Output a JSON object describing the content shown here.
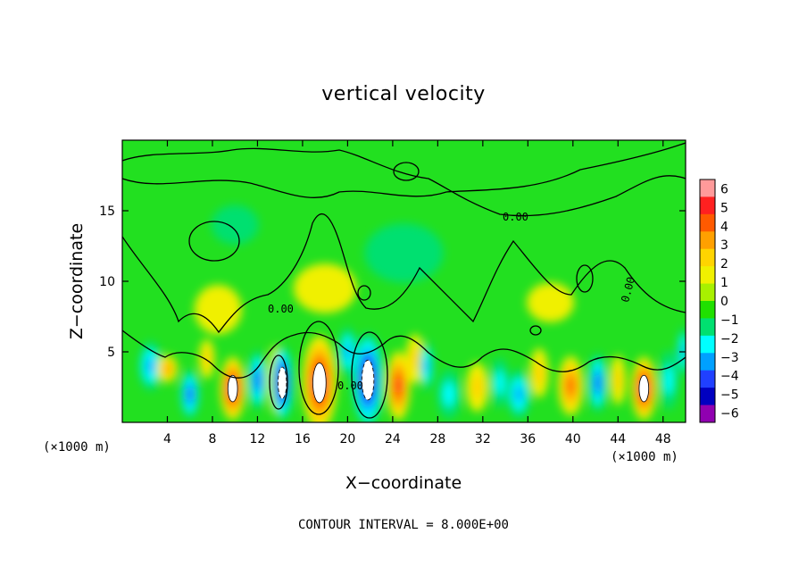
{
  "chart_data": {
    "type": "heatmap",
    "title": "vertical velocity",
    "xlabel": "X−coordinate",
    "ylabel": "Z−coordinate",
    "x_unit_left": "(×1000 m)",
    "x_unit_right": "(×1000 m)",
    "xlim": [
      0,
      50
    ],
    "ylim": [
      0,
      20
    ],
    "x_ticks": [
      4,
      8,
      12,
      16,
      20,
      24,
      28,
      32,
      36,
      40,
      44,
      48
    ],
    "y_ticks": [
      5,
      10,
      15
    ],
    "colorbar": {
      "levels": [
        -6,
        -5,
        -4,
        -3,
        -2,
        -1,
        0,
        1,
        2,
        3,
        4,
        5,
        6
      ],
      "labels": [
        "6",
        "5",
        "4",
        "3",
        "2",
        "1",
        "0",
        "−1",
        "−2",
        "−3",
        "−4",
        "−5",
        "−6"
      ],
      "colors": [
        "#ff9a9a",
        "#ff2020",
        "#ff5a00",
        "#ffa000",
        "#ffd400",
        "#f0f000",
        "#a8f000",
        "#20e000",
        "#00e070",
        "#00ffff",
        "#00a0ff",
        "#2040ff",
        "#0000c0",
        "#9000b0"
      ]
    },
    "contour_labels": [
      "0.00",
      "0.00",
      "0.00",
      "0.00"
    ],
    "cells": [
      {
        "x": 2.5,
        "z": 4.0,
        "w": 1.5,
        "h": 2.5,
        "v": -3
      },
      {
        "x": 4.0,
        "z": 3.8,
        "w": 1.3,
        "h": 1.4,
        "v": 3
      },
      {
        "x": 6.0,
        "z": 2.0,
        "w": 1.2,
        "h": 2.5,
        "v": -4
      },
      {
        "x": 7.5,
        "z": 4.5,
        "w": 1.0,
        "h": 2.0,
        "v": 1.5
      },
      {
        "x": 9.8,
        "z": 2.4,
        "w": 1.6,
        "h": 3.2,
        "v": 6
      },
      {
        "x": 12.0,
        "z": 3.0,
        "w": 1.2,
        "h": 3.0,
        "v": -4
      },
      {
        "x": 13.6,
        "z": 3.0,
        "w": 1.0,
        "h": 3.5,
        "v": 1.5
      },
      {
        "x": 14.2,
        "z": 2.8,
        "w": 1.4,
        "h": 3.8,
        "v": -6
      },
      {
        "x": 17.5,
        "z": 2.8,
        "w": 2.2,
        "h": 4.8,
        "v": 6
      },
      {
        "x": 20.0,
        "z": 5.0,
        "w": 1.2,
        "h": 2.5,
        "v": -3
      },
      {
        "x": 21.8,
        "z": 3.0,
        "w": 2.0,
        "h": 4.8,
        "v": -6
      },
      {
        "x": 24.5,
        "z": 2.6,
        "w": 1.5,
        "h": 3.5,
        "v": 5
      },
      {
        "x": 26.0,
        "z": 4.5,
        "w": 1.2,
        "h": 2.5,
        "v": 2
      },
      {
        "x": 27.0,
        "z": 4.0,
        "w": 0.9,
        "h": 2.5,
        "v": -3
      },
      {
        "x": 29.0,
        "z": 2.0,
        "w": 1.5,
        "h": 2.5,
        "v": -2
      },
      {
        "x": 31.5,
        "z": 2.5,
        "w": 1.4,
        "h": 2.5,
        "v": 2
      },
      {
        "x": 33.5,
        "z": 2.8,
        "w": 1.2,
        "h": 2.5,
        "v": -2
      },
      {
        "x": 35.2,
        "z": 2.0,
        "w": 1.5,
        "h": 2.5,
        "v": -3
      },
      {
        "x": 37.0,
        "z": 3.5,
        "w": 1.2,
        "h": 2.5,
        "v": 1.5
      },
      {
        "x": 39.8,
        "z": 2.6,
        "w": 1.6,
        "h": 3.0,
        "v": 4
      },
      {
        "x": 42.2,
        "z": 2.8,
        "w": 1.2,
        "h": 3.0,
        "v": -4
      },
      {
        "x": 44.0,
        "z": 3.0,
        "w": 1.0,
        "h": 2.5,
        "v": 2
      },
      {
        "x": 46.3,
        "z": 2.4,
        "w": 1.6,
        "h": 3.2,
        "v": 6
      },
      {
        "x": 48.5,
        "z": 3.0,
        "w": 1.2,
        "h": 3.0,
        "v": -2
      },
      {
        "x": 49.8,
        "z": 5.0,
        "w": 0.8,
        "h": 2.5,
        "v": -3
      },
      {
        "x": 18.0,
        "z": 9.5,
        "w": 4.0,
        "h": 2.5,
        "v": 0.6
      },
      {
        "x": 8.5,
        "z": 8.0,
        "w": 3.0,
        "h": 2.5,
        "v": 0.7
      },
      {
        "x": 38.0,
        "z": 8.5,
        "w": 3.0,
        "h": 2.0,
        "v": 0.6
      },
      {
        "x": 25.0,
        "z": 12.0,
        "w": 5.0,
        "h": 3.0,
        "v": -0.4
      },
      {
        "x": 10.0,
        "z": 14.0,
        "w": 3.0,
        "h": 2.0,
        "v": -0.5
      }
    ]
  },
  "footnote": "CONTOUR INTERVAL = 8.000E+00"
}
